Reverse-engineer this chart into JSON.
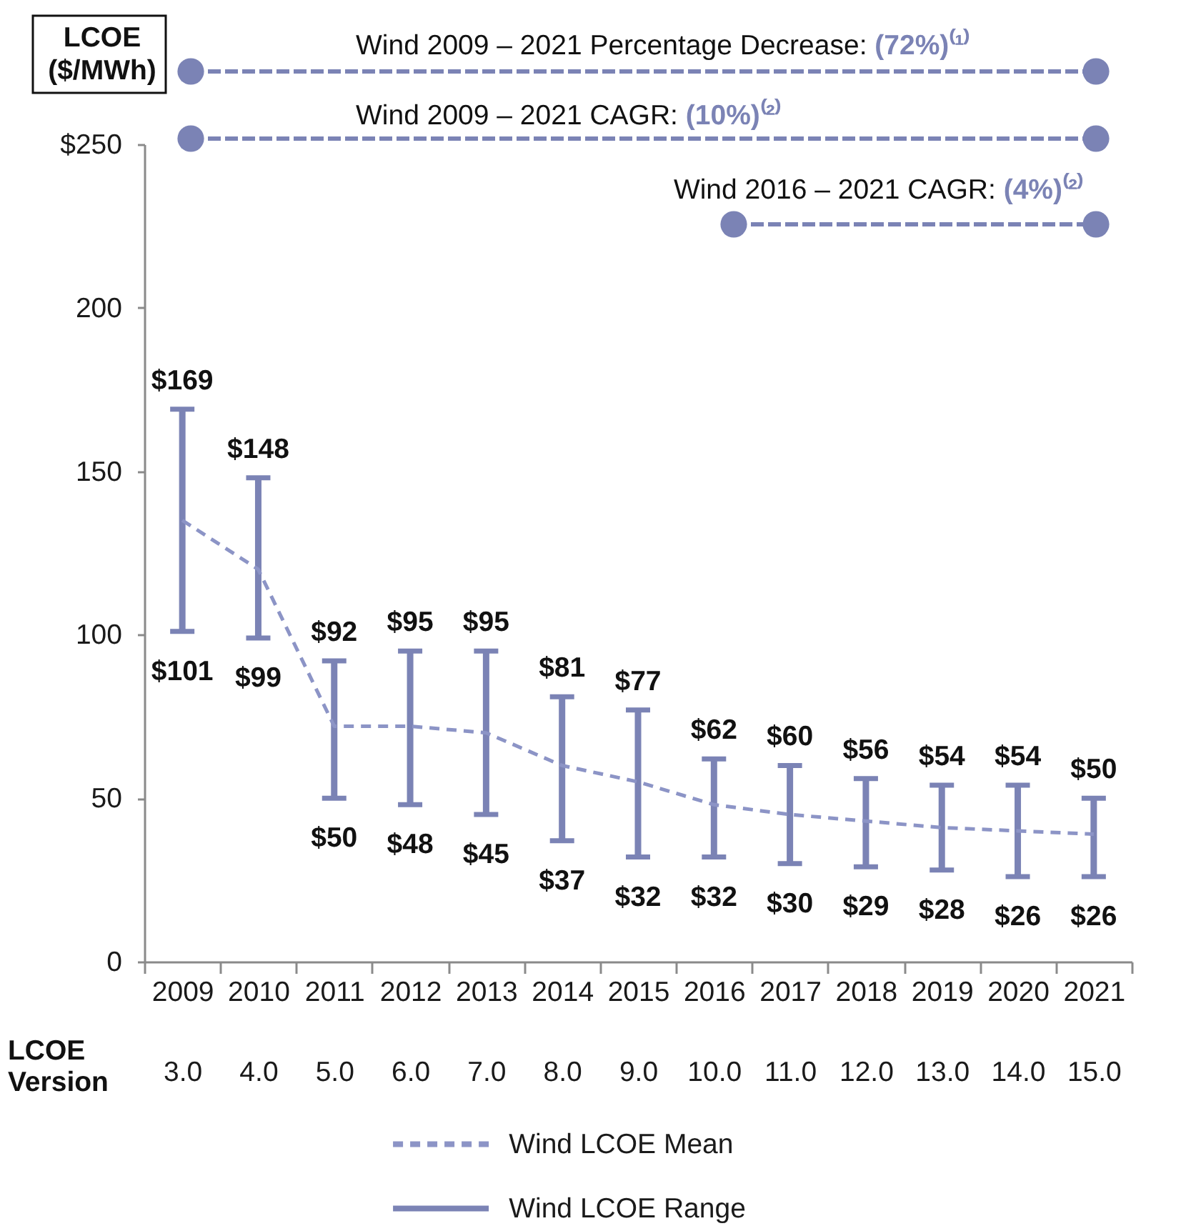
{
  "chart_data": {
    "type": "bar",
    "ylabel": "LCOE ($/MWh)",
    "x2label": "LCOE Version",
    "categories": [
      "2009",
      "2010",
      "2011",
      "2012",
      "2013",
      "2014",
      "2015",
      "2016",
      "2017",
      "2018",
      "2019",
      "2020",
      "2021"
    ],
    "ylim": [
      0,
      250
    ],
    "yticks": [
      0,
      50,
      100,
      150,
      200,
      {
        "value": 250,
        "label": "$250"
      }
    ],
    "x2lim": [
      2.5,
      15.5
    ],
    "x2ticks": [
      {
        "value": 3,
        "label": "3.0"
      },
      {
        "value": 4,
        "label": "4.0"
      },
      {
        "value": 5,
        "label": "5.0"
      },
      {
        "value": 6,
        "label": "6.0"
      },
      {
        "value": 7,
        "label": "7.0"
      },
      {
        "value": 8,
        "label": "8.0"
      },
      {
        "value": 9,
        "label": "9.0"
      },
      {
        "value": 10,
        "label": "10.0"
      },
      {
        "value": 11,
        "label": "11.0"
      },
      {
        "value": 12,
        "label": "12.0"
      },
      {
        "value": 13,
        "label": "13.0"
      },
      {
        "value": 14,
        "label": "14.0"
      },
      {
        "value": 15,
        "label": "15.0"
      }
    ],
    "series": [
      {
        "name": "Wind LCOE Mean",
        "type": "line",
        "line_style": "dashed",
        "color": "#8c94c6",
        "values": [
          135,
          120,
          72,
          72,
          70,
          60,
          55,
          48,
          45,
          43,
          41,
          40,
          39
        ]
      },
      {
        "name": "Wind LCOE Range",
        "color": "#7b83b5",
        "base": [
          101,
          99,
          50,
          48,
          45,
          37,
          32,
          32,
          30,
          29,
          28,
          26,
          26
        ],
        "values": [
          68,
          49,
          42,
          47,
          50,
          44,
          45,
          30,
          30,
          27,
          26,
          28,
          24
        ]
      }
    ],
    "annotations": [
      "Wind 2009 – 2021 Percentage Decrease: (72%)⁽¹⁾",
      "Wind 2009 – 2021 CAGR: (10%)⁽²⁾",
      "Wind 2016 – 2021 CAGR: (4%)⁽²⁾",
      {
        "text": "$169",
        "x": "2009",
        "y": 169
      },
      {
        "text": "$101",
        "x": "2009",
        "y": 101
      },
      {
        "text": "$148",
        "x": "2010",
        "y": 148
      },
      {
        "text": "$99",
        "x": "2010",
        "y": 99
      },
      {
        "text": "$92",
        "x": "2011",
        "y": 92
      },
      {
        "text": "$50",
        "x": "2011",
        "y": 50
      },
      {
        "text": "$95",
        "x": "2012",
        "y": 95
      },
      {
        "text": "$48",
        "x": "2012",
        "y": 48
      },
      {
        "text": "$95",
        "x": "2013",
        "y": 95
      },
      {
        "text": "$45",
        "x": "2013",
        "y": 45
      },
      {
        "text": "$81",
        "x": "2014",
        "y": 81
      },
      {
        "text": "$37",
        "x": "2014",
        "y": 37
      },
      {
        "text": "$77",
        "x": "2015",
        "y": 77
      },
      {
        "text": "$32",
        "x": "2015",
        "y": 32
      },
      {
        "text": "$62",
        "x": "2016",
        "y": 62
      },
      {
        "text": "$32",
        "x": "2016",
        "y": 32
      },
      {
        "text": "$60",
        "x": "2017",
        "y": 60
      },
      {
        "text": "$30",
        "x": "2017",
        "y": 30
      },
      {
        "text": "$56",
        "x": "2018",
        "y": 56
      },
      {
        "text": "$29",
        "x": "2018",
        "y": 29
      },
      {
        "text": "$54",
        "x": "2019",
        "y": 54
      },
      {
        "text": "$28",
        "x": "2019",
        "y": 28
      },
      {
        "text": "$54",
        "x": "2020",
        "y": 54
      },
      {
        "text": "$26",
        "x": "2020",
        "y": 26
      },
      {
        "text": "$50",
        "x": "2021",
        "y": 50
      },
      {
        "text": "$26",
        "x": "2021",
        "y": 26
      }
    ],
    "legend": "bottom"
  }
}
